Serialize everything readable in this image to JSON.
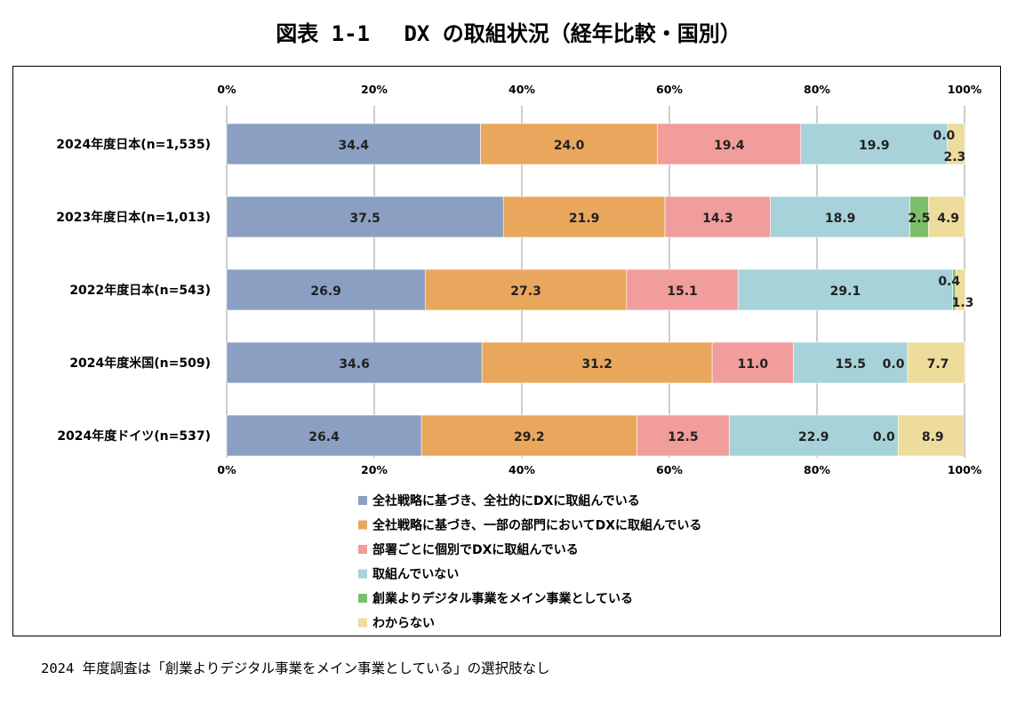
{
  "title": "図表 1-1　 DX の取組状況（経年比較・国別）",
  "footnote": "2024 年度調査は「創業よりデジタル事業をメイン事業としている」の選択肢なし",
  "chart_data": {
    "type": "bar",
    "orientation": "horizontal",
    "stacked": true,
    "percent": true,
    "xlim": [
      0,
      100
    ],
    "x_ticks": [
      "0%",
      "20%",
      "40%",
      "60%",
      "80%",
      "100%"
    ],
    "grid": true,
    "legend_position": "bottom",
    "categories": [
      "2024年度日本(n=1,535)",
      "2023年度日本(n=1,013)",
      "2022年度日本(n=543)",
      "2024年度米国(n=509)",
      "2024年度ドイツ(n=537)"
    ],
    "series": [
      {
        "name": "全社戦略に基づき、全社的にDXに取組んでいる",
        "color": "#8A9FC2",
        "values": [
          34.4,
          37.5,
          26.9,
          34.6,
          26.4
        ]
      },
      {
        "name": "全社戦略に基づき、一部の部門においてDXに取組んでいる",
        "color": "#E9A75E",
        "values": [
          24.0,
          21.9,
          27.3,
          31.2,
          29.2
        ]
      },
      {
        "name": "部署ごとに個別でDXに取組んでいる",
        "color": "#F19D9B",
        "values": [
          19.4,
          14.3,
          15.1,
          11.0,
          12.5
        ]
      },
      {
        "name": "取組んでいない",
        "color": "#A7D2D9",
        "values": [
          19.9,
          18.9,
          29.1,
          15.5,
          22.9
        ]
      },
      {
        "name": "創業よりデジタル事業をメイン事業としている",
        "color": "#7DBE6A",
        "values": [
          0.0,
          2.5,
          0.4,
          0.0,
          0.0
        ]
      },
      {
        "name": "わからない",
        "color": "#EEDC9C",
        "values": [
          2.3,
          4.9,
          1.3,
          7.7,
          8.9
        ]
      }
    ]
  }
}
